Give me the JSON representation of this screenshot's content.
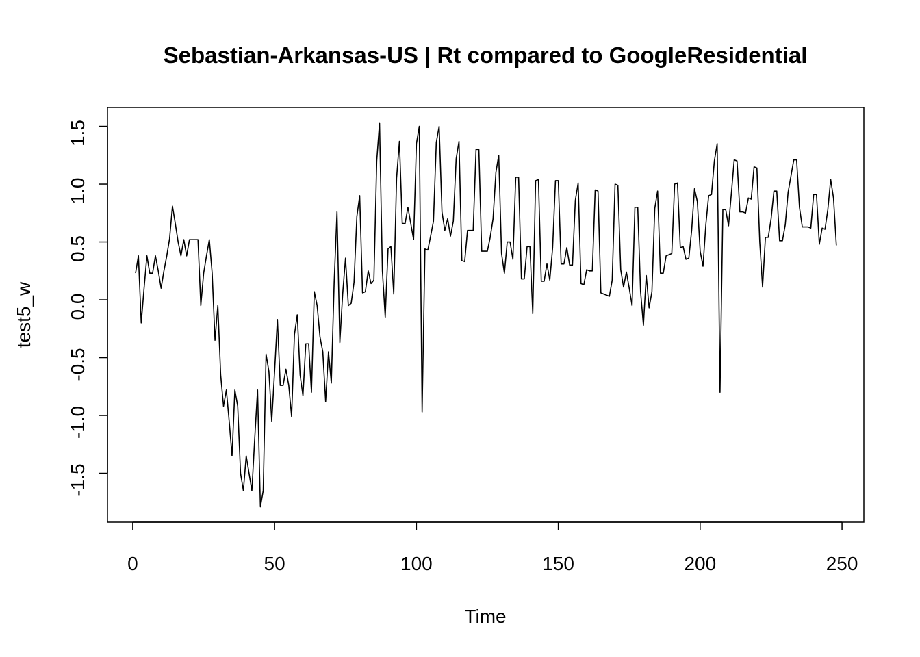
{
  "chart_data": {
    "type": "line",
    "title": "Sebastian-Arkansas-US | Rt compared to GoogleResidential",
    "xlabel": "Time",
    "ylabel": "test5_w",
    "color": "#000000",
    "x": [
      1,
      2,
      3,
      4,
      5,
      6,
      7,
      8,
      9,
      10,
      11,
      12,
      13,
      14,
      15,
      16,
      17,
      18,
      19,
      20,
      21,
      22,
      23,
      24,
      25,
      26,
      27,
      28,
      29,
      30,
      31,
      32,
      33,
      34,
      35,
      36,
      37,
      38,
      39,
      40,
      41,
      42,
      43,
      44,
      45,
      46,
      47,
      48,
      49,
      50,
      51,
      52,
      53,
      54,
      55,
      56,
      57,
      58,
      59,
      60,
      61,
      62,
      63,
      64,
      65,
      66,
      67,
      68,
      69,
      70,
      71,
      72,
      73,
      74,
      75,
      76,
      77,
      78,
      79,
      80,
      81,
      82,
      83,
      84,
      85,
      86,
      87,
      88,
      89,
      90,
      91,
      92,
      93,
      94,
      95,
      96,
      97,
      98,
      99,
      100,
      101,
      102,
      103,
      104,
      105,
      106,
      107,
      108,
      109,
      110,
      111,
      112,
      113,
      114,
      115,
      116,
      117,
      118,
      119,
      120,
      121,
      122,
      123,
      124,
      125,
      126,
      127,
      128,
      129,
      130,
      131,
      132,
      133,
      134,
      135,
      136,
      137,
      138,
      139,
      140,
      141,
      142,
      143,
      144,
      145,
      146,
      147,
      148,
      149,
      150,
      151,
      152,
      153,
      154,
      155,
      156,
      157,
      158,
      159,
      160,
      161,
      162,
      163,
      164,
      165,
      166,
      167,
      168,
      169,
      170,
      171,
      172,
      173,
      174,
      175,
      176,
      177,
      178,
      179,
      180,
      181,
      182,
      183,
      184,
      185,
      186,
      187,
      188,
      189,
      190,
      191,
      192,
      193,
      194,
      195,
      196,
      197,
      198,
      199,
      200,
      201,
      202,
      203,
      204,
      205,
      206,
      207,
      208,
      209,
      210,
      211,
      212,
      213,
      214,
      215,
      216,
      217,
      218,
      219,
      220,
      221,
      222,
      223,
      224,
      225,
      226,
      227,
      228,
      229,
      230,
      231,
      232,
      233,
      234,
      235,
      236,
      237,
      238,
      239,
      240,
      241,
      242,
      243,
      244,
      245,
      246,
      247,
      248
    ],
    "values": [
      0.23,
      0.38,
      -0.2,
      0.1,
      0.38,
      0.23,
      0.23,
      0.38,
      0.25,
      0.1,
      0.25,
      0.38,
      0.53,
      0.81,
      0.66,
      0.5,
      0.38,
      0.52,
      0.38,
      0.52,
      0.52,
      0.52,
      0.52,
      -0.05,
      0.23,
      0.38,
      0.52,
      0.23,
      -0.35,
      -0.05,
      -0.65,
      -0.92,
      -0.78,
      -1.05,
      -1.35,
      -0.78,
      -0.92,
      -1.5,
      -1.65,
      -1.35,
      -1.5,
      -1.65,
      -1.2,
      -0.78,
      -1.79,
      -1.65,
      -0.47,
      -0.62,
      -1.05,
      -0.62,
      -0.17,
      -0.74,
      -0.74,
      -0.6,
      -0.74,
      -1.01,
      -0.3,
      -0.13,
      -0.65,
      -0.83,
      -0.38,
      -0.38,
      -0.8,
      0.07,
      -0.05,
      -0.32,
      -0.45,
      -0.88,
      -0.45,
      -0.72,
      0.15,
      0.76,
      -0.37,
      0.05,
      0.36,
      -0.05,
      -0.03,
      0.15,
      0.72,
      0.9,
      0.06,
      0.07,
      0.25,
      0.14,
      0.17,
      1.2,
      1.53,
      0.25,
      -0.15,
      0.44,
      0.46,
      0.05,
      1.05,
      1.37,
      0.66,
      0.66,
      0.8,
      0.66,
      0.52,
      1.35,
      1.5,
      -0.97,
      0.44,
      0.43,
      0.55,
      0.68,
      1.36,
      1.5,
      0.76,
      0.6,
      0.7,
      0.55,
      0.68,
      1.22,
      1.37,
      0.34,
      0.33,
      0.6,
      0.6,
      0.6,
      1.3,
      1.3,
      0.42,
      0.42,
      0.42,
      0.54,
      0.7,
      1.1,
      1.25,
      0.4,
      0.23,
      0.5,
      0.5,
      0.35,
      1.06,
      1.06,
      0.18,
      0.18,
      0.46,
      0.46,
      -0.12,
      1.03,
      1.04,
      0.16,
      0.16,
      0.31,
      0.17,
      0.45,
      1.03,
      1.03,
      0.31,
      0.31,
      0.45,
      0.3,
      0.3,
      0.86,
      1.01,
      0.14,
      0.13,
      0.26,
      0.25,
      0.25,
      0.95,
      0.94,
      0.06,
      0.05,
      0.04,
      0.03,
      0.17,
      1.0,
      0.99,
      0.26,
      0.11,
      0.24,
      0.1,
      -0.05,
      0.8,
      0.8,
      0.07,
      -0.22,
      0.21,
      -0.07,
      0.07,
      0.79,
      0.94,
      0.23,
      0.23,
      0.38,
      0.39,
      0.4,
      1.0,
      1.01,
      0.45,
      0.46,
      0.35,
      0.36,
      0.6,
      0.96,
      0.85,
      0.42,
      0.29,
      0.65,
      0.9,
      0.91,
      1.2,
      1.35,
      -0.8,
      0.78,
      0.78,
      0.64,
      0.92,
      1.21,
      1.2,
      0.76,
      0.76,
      0.75,
      0.88,
      0.87,
      1.15,
      1.14,
      0.5,
      0.11,
      0.54,
      0.54,
      0.7,
      0.94,
      0.94,
      0.51,
      0.51,
      0.65,
      0.93,
      1.07,
      1.21,
      1.21,
      0.8,
      0.63,
      0.63,
      0.63,
      0.62,
      0.91,
      0.91,
      0.48,
      0.62,
      0.61,
      0.78,
      1.04,
      0.88,
      0.47
    ],
    "xlim": [
      -8.9,
      257.7
    ],
    "ylim": [
      -1.923,
      1.663
    ],
    "xticks": [
      0,
      50,
      100,
      150,
      200,
      250
    ],
    "yticks": [
      -1.5,
      {
        "value": -1,
        "label": "-1.0"
      },
      -0.5,
      {
        "value": 0,
        "label": "0.0"
      },
      0.5,
      {
        "value": 1,
        "label": "1.0"
      },
      1.5
    ]
  }
}
